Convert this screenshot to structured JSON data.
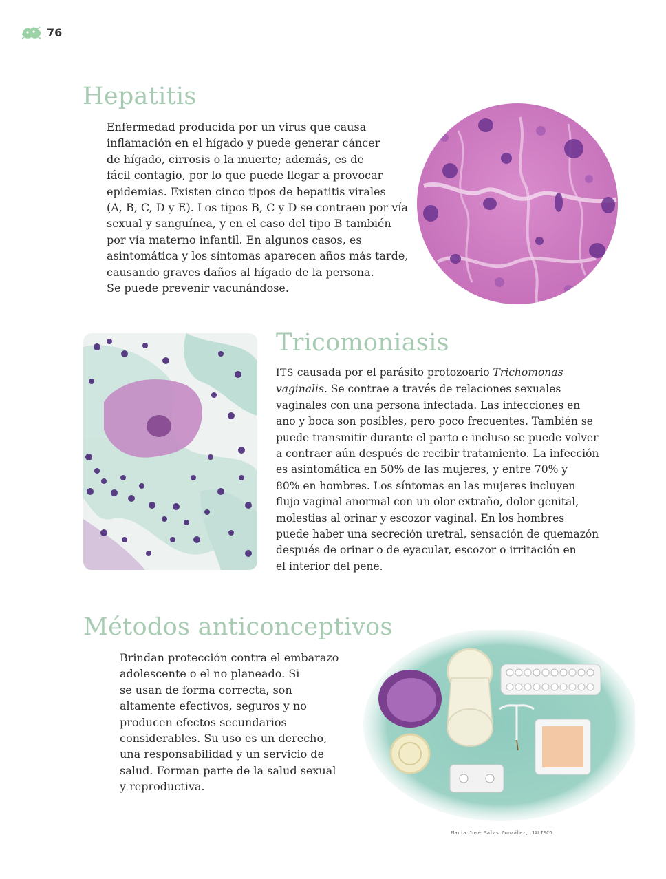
{
  "header": {
    "page_number": "76",
    "icon": "green-leaf-badge-icon"
  },
  "hepatitis": {
    "title": "Hepatitis",
    "lines": [
      "Enfermedad producida por un virus que causa",
      "inflamación en el hígado y puede generar cáncer",
      "de hígado, cirrosis o la muerte; además, es de",
      "fácil contagio, por lo que puede llegar a provocar",
      "epidemias. Existen cinco tipos de hepatitis virales",
      "(A, B, C, D y E). Los tipos B, C y D se contraen por vía",
      "sexual y sanguínea, y en el caso del tipo B también",
      "por vía materno infantil. En algunos casos, es",
      "asintomática y los síntomas aparecen años más tarde,",
      "causando graves daños al hígado de la persona.",
      "Se puede prevenir vacunándose."
    ],
    "image": "liver-tissue-micrograph"
  },
  "tricomoniasis": {
    "title": "Tricomoniasis",
    "line1_its": "ITS",
    "line1_rest": " causada por el parásito protozoario ",
    "line1_italic": "Trichomonas",
    "line2_italic": "vaginalis.",
    "line2_rest": " Se contrae a través de relaciones sexuales",
    "lines": [
      "vaginales con una persona infectada. Las infecciones en",
      "ano y boca son posibles, pero poco frecuentes. También se",
      "puede transmitir durante el parto e incluso se puede volver",
      "a contraer aún después de recibir tratamiento. La infección",
      "es asintomática en 50% de las mujeres, y entre 70% y",
      "80% en hombres. Los síntomas en las mujeres incluyen",
      "flujo vaginal anormal con un olor extraño, dolor genital,",
      "molestias al orinar y escozor vaginal. En los hombres",
      "puede haber una secreción uretral, sensación de quemazón",
      "después de orinar o de eyacular, escozor o irritación en",
      "el interior del pene."
    ],
    "image": "trichomonas-cell-micrograph"
  },
  "metodos": {
    "title": "Métodos anticonceptivos",
    "lines": [
      "Brindan protección contra el embarazo",
      "adolescente o el no planeado. Si",
      "se usan de forma correcta, son",
      "altamente efectivos, seguros y no",
      "producen efectos secundarios",
      "considerables. Su uso es un derecho,",
      "una responsabilidad y un servicio de",
      "salud. Forman parte de la salud sexual",
      "y reproductiva."
    ],
    "image": "contraceptive-methods-illustration"
  },
  "credit": "María José Salas González, JALISCO",
  "colors": {
    "title_green": "#a7cbb2",
    "tissue_pink": "#d27fc4",
    "nucleus_purple": "#5a2a7a",
    "background_teal": "#8fcbbd"
  }
}
